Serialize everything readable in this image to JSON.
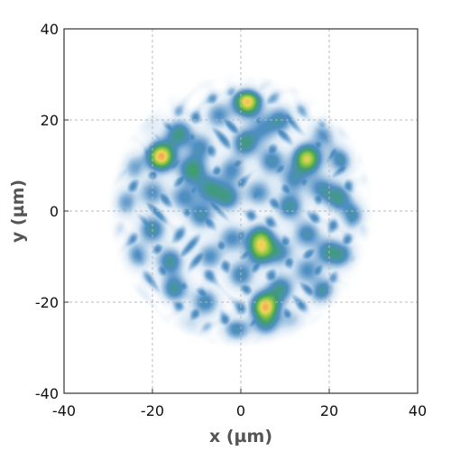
{
  "chart_data": {
    "type": "heatmap",
    "title": "",
    "xlabel": "x (µm)",
    "ylabel": "y (µm)",
    "xlim": [
      -40,
      40
    ],
    "ylim": [
      -40,
      40
    ],
    "xticks": [
      -40,
      -20,
      0,
      20,
      40
    ],
    "yticks": [
      -40,
      -20,
      0,
      20,
      40
    ],
    "xtick_labels": [
      "-40",
      "-20",
      "0",
      "20",
      "40"
    ],
    "ytick_labels": [
      "-40",
      "-20",
      "0",
      "20",
      "40"
    ],
    "grid": true,
    "aperture_radius": 28,
    "colormap": [
      "#ffffff",
      "#d6e6f4",
      "#4f8ec4",
      "#3f9d6e",
      "#8cc63f",
      "#f2d65a",
      "#f0a050",
      "#e04040"
    ],
    "speckles": [
      {
        "x": 1.5,
        "y": 24,
        "intensity": 0.95
      },
      {
        "x": -18,
        "y": 12,
        "intensity": 1.0
      },
      {
        "x": 15,
        "y": 11.5,
        "intensity": 0.85
      },
      {
        "x": 5.5,
        "y": -21,
        "intensity": 0.95
      },
      {
        "x": 4.5,
        "y": -6,
        "intensity": 0.6
      },
      {
        "x": 4.5,
        "y": -9,
        "intensity": 0.55
      },
      {
        "x": -11,
        "y": 9,
        "intensity": 0.55
      },
      {
        "x": -22,
        "y": 20.5,
        "intensity": 0.45
      },
      {
        "x": -14,
        "y": 17,
        "intensity": 0.5
      },
      {
        "x": -7,
        "y": 5,
        "intensity": 0.45
      },
      {
        "x": 1,
        "y": 15,
        "intensity": 0.5
      },
      {
        "x": 9,
        "y": 20,
        "intensity": 0.4
      },
      {
        "x": 23,
        "y": 11.5,
        "intensity": 0.45
      },
      {
        "x": 22,
        "y": 3,
        "intensity": 0.45
      },
      {
        "x": 26,
        "y": -1,
        "intensity": 0.45
      },
      {
        "x": -27,
        "y": 2,
        "intensity": 0.45
      },
      {
        "x": -20,
        "y": -4,
        "intensity": 0.45
      },
      {
        "x": -16,
        "y": -11,
        "intensity": 0.45
      },
      {
        "x": -9,
        "y": -1,
        "intensity": 0.4
      },
      {
        "x": -3,
        "y": 3,
        "intensity": 0.45
      },
      {
        "x": 11,
        "y": 1,
        "intensity": 0.45
      },
      {
        "x": 15,
        "y": -5,
        "intensity": 0.4
      },
      {
        "x": 20,
        "y": -9,
        "intensity": 0.45
      },
      {
        "x": 19,
        "y": -18,
        "intensity": 0.5
      },
      {
        "x": 9,
        "y": -17,
        "intensity": 0.45
      },
      {
        "x": 0,
        "y": -14,
        "intensity": 0.4
      },
      {
        "x": -8,
        "y": -20,
        "intensity": 0.4
      },
      {
        "x": -15,
        "y": -17,
        "intensity": 0.45
      },
      {
        "x": -1,
        "y": -27,
        "intensity": 0.55
      },
      {
        "x": 6,
        "y": -26,
        "intensity": 0.45
      },
      {
        "x": -12,
        "y": -26,
        "intensity": 0.35
      },
      {
        "x": 12,
        "y": -25,
        "intensity": 0.35
      },
      {
        "x": -24,
        "y": -10,
        "intensity": 0.4
      },
      {
        "x": -25,
        "y": 10,
        "intensity": 0.4
      },
      {
        "x": -5,
        "y": 21,
        "intensity": 0.35
      },
      {
        "x": 7,
        "y": 11,
        "intensity": 0.4
      },
      {
        "x": 12,
        "y": 7,
        "intensity": 0.35
      },
      {
        "x": 19,
        "y": 17,
        "intensity": 0.35
      },
      {
        "x": 24,
        "y": -10,
        "intensity": 0.35
      },
      {
        "x": -2,
        "y": -6,
        "intensity": 0.35
      },
      {
        "x": -13,
        "y": 3,
        "intensity": 0.35
      },
      {
        "x": -7,
        "y": -10,
        "intensity": 0.35
      },
      {
        "x": 9,
        "y": -9,
        "intensity": 0.35
      },
      {
        "x": 15,
        "y": -13,
        "intensity": 0.35
      },
      {
        "x": -20,
        "y": 4,
        "intensity": 0.35
      },
      {
        "x": -2,
        "y": 9,
        "intensity": 0.35
      },
      {
        "x": 4,
        "y": 4,
        "intensity": 0.35
      },
      {
        "x": 18,
        "y": 5,
        "intensity": 0.35
      },
      {
        "x": -9,
        "y": 14,
        "intensity": 0.35
      },
      {
        "x": 5,
        "y": 18,
        "intensity": 0.3
      }
    ]
  }
}
